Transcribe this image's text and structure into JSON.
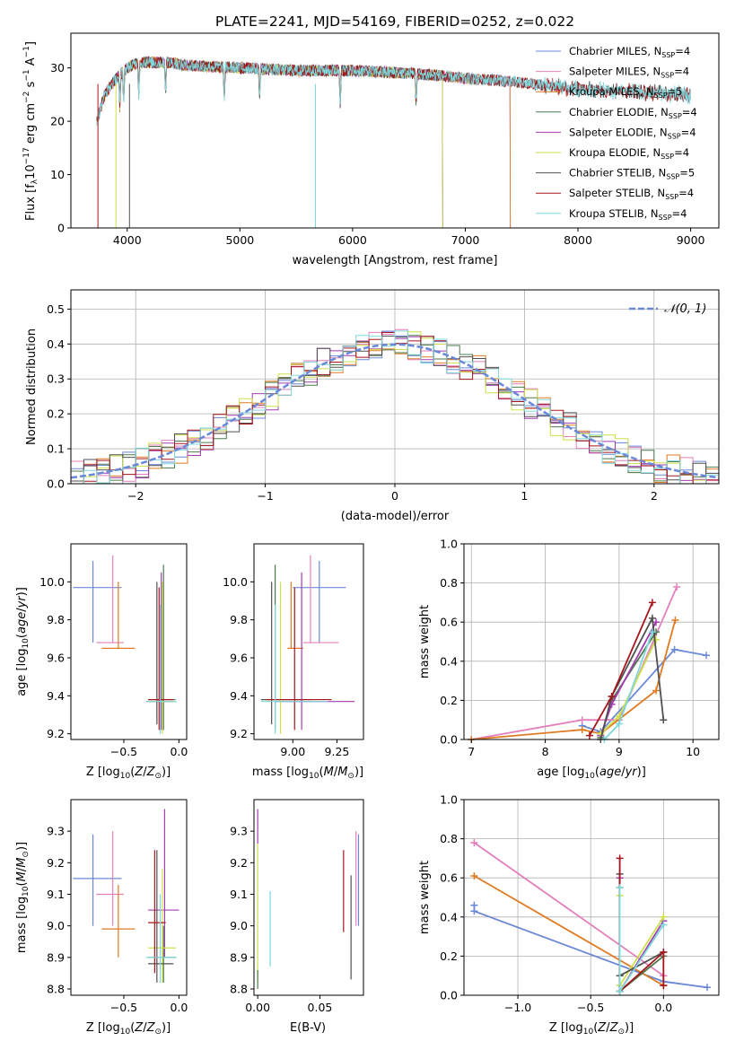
{
  "figure": {
    "title": "PLATE=2241, MJD=54169, FIBERID=0252, z=0.022"
  },
  "colors": {
    "Chabrier MILES": "#6a88d8",
    "Salpeter MILES": "#e37fbc",
    "Kroupa MILES": "#e07b22",
    "Chabrier ELODIE": "#4e7a4e",
    "Salpeter ELODIE": "#a43cb0",
    "Kroupa ELODIE": "#cde04a",
    "Chabrier STELIB": "#505050",
    "Salpeter STELIB": "#a5161c",
    "Kroupa STELIB": "#7fd8dc"
  },
  "legend": [
    {
      "name": "Chabrier MILES",
      "n": "4"
    },
    {
      "name": "Salpeter MILES",
      "n": "4"
    },
    {
      "name": "Kroupa MILES",
      "n": "5"
    },
    {
      "name": "Chabrier ELODIE",
      "n": "4"
    },
    {
      "name": "Salpeter ELODIE",
      "n": "4"
    },
    {
      "name": "Kroupa ELODIE",
      "n": "4"
    },
    {
      "name": "Chabrier STELIB",
      "n": "5"
    },
    {
      "name": "Salpeter STELIB",
      "n": "4"
    },
    {
      "name": "Kroupa STELIB",
      "n": "4"
    }
  ],
  "chart_data": [
    {
      "id": "spectrum",
      "type": "line",
      "xlabel": "wavelength [Angstrom, rest frame]",
      "ylabel": "Flux [f_λ 10^-17 erg cm^-2 s^-1 A^-1]",
      "xlim": [
        3500,
        9250
      ],
      "ylim": [
        0,
        36.5
      ],
      "xticks": [
        4000,
        5000,
        6000,
        7000,
        8000,
        9000
      ],
      "yticks": [
        0,
        10,
        20,
        30
      ],
      "grid": false,
      "legend_loc": "top-right",
      "continuum": {
        "x": [
          3730,
          3800,
          3900,
          3950,
          4000,
          4100,
          4200,
          4300,
          4400,
          4500,
          5000,
          5500,
          6000,
          6500,
          6800,
          7000,
          7400,
          7800,
          8000,
          8500,
          9000
        ],
        "y": [
          20,
          25,
          28,
          29,
          30,
          31,
          31,
          31,
          31,
          30.5,
          30,
          29.5,
          29.5,
          29,
          28.5,
          28,
          27.5,
          26.5,
          26,
          25.5,
          25
        ]
      },
      "series_coverage": {
        "Chabrier MILES": [
          3730,
          7400
        ],
        "Salpeter MILES": [
          3730,
          7400
        ],
        "Kroupa MILES": [
          3730,
          7400
        ],
        "Chabrier ELODIE": [
          3730,
          6800
        ],
        "Salpeter ELODIE": [
          3730,
          6800
        ],
        "Kroupa ELODIE": [
          3730,
          6800
        ],
        "Chabrier STELIB": [
          3730,
          9000
        ],
        "Salpeter STELIB": [
          3730,
          9000
        ],
        "Kroupa STELIB": [
          3730,
          9000
        ]
      }
    },
    {
      "id": "residuals",
      "type": "area",
      "xlabel": "(data-model)/error",
      "ylabel": "Normed distribution",
      "xlim": [
        -2.5,
        2.5
      ],
      "ylim": [
        0,
        0.555
      ],
      "xticks": [
        -2,
        -1,
        0,
        1,
        2
      ],
      "yticks": [
        0.0,
        0.1,
        0.2,
        0.3,
        0.4,
        0.5
      ],
      "grid": true,
      "legend": "N(0,1)",
      "legend_loc": "top-right",
      "bins": 50,
      "curve": "normal(0,1)"
    },
    {
      "id": "age_vs_Z",
      "type": "scatter",
      "xlabel": "Z [log10(Z/Z_sun)]",
      "ylabel": "age  [log10(age/yr)]",
      "xlim": [
        -0.98,
        0.07
      ],
      "ylim": [
        9.17,
        10.2
      ],
      "xticks": [
        -0.5,
        0.0
      ],
      "yticks": [
        9.2,
        9.4,
        9.6,
        9.8,
        10.0
      ],
      "points": [
        {
          "s": "Chabrier MILES",
          "x": -0.78,
          "y": 9.97,
          "xe": [
            -0.96,
            -0.52
          ],
          "ye": [
            9.68,
            10.11
          ]
        },
        {
          "s": "Salpeter MILES",
          "x": -0.6,
          "y": 9.68,
          "xe": [
            -0.75,
            -0.5
          ],
          "ye": [
            9.68,
            10.14
          ]
        },
        {
          "s": "Kroupa MILES",
          "x": -0.55,
          "y": 9.65,
          "xe": [
            -0.7,
            -0.4
          ],
          "ye": [
            9.65,
            10.0
          ]
        },
        {
          "s": "Chabrier ELODIE",
          "x": -0.14,
          "y": 9.38,
          "xe": [
            -0.28,
            -0.03
          ],
          "ye": [
            9.22,
            10.09
          ]
        },
        {
          "s": "Salpeter ELODIE",
          "x": -0.16,
          "y": 9.37,
          "xe": [
            -0.3,
            -0.05
          ],
          "ye": [
            9.22,
            10.05
          ]
        },
        {
          "s": "Kroupa ELODIE",
          "x": -0.15,
          "y": 9.37,
          "xe": [
            -0.28,
            -0.03
          ],
          "ye": [
            9.2,
            10.0
          ]
        },
        {
          "s": "Chabrier STELIB",
          "x": -0.2,
          "y": 9.38,
          "xe": [
            -0.28,
            -0.05
          ],
          "ye": [
            9.25,
            10.0
          ]
        },
        {
          "s": "Salpeter STELIB",
          "x": -0.18,
          "y": 9.38,
          "xe": [
            -0.28,
            -0.05
          ],
          "ye": [
            9.22,
            9.97
          ]
        },
        {
          "s": "Kroupa STELIB",
          "x": -0.17,
          "y": 9.37,
          "xe": [
            -0.3,
            -0.02
          ],
          "ye": [
            9.2,
            9.88
          ]
        }
      ]
    },
    {
      "id": "age_vs_mass",
      "type": "scatter",
      "xlabel": "mass [log10(M/M_sun)]",
      "ylabel": "",
      "xlim": [
        8.78,
        9.4
      ],
      "ylim": [
        9.17,
        10.2
      ],
      "xticks": [
        9.0,
        9.25
      ],
      "yticks": [
        9.2,
        9.4,
        9.6,
        9.8,
        10.0
      ],
      "points": [
        {
          "s": "Chabrier MILES",
          "x": 9.15,
          "y": 9.97,
          "xe": [
            9.0,
            9.3
          ],
          "ye": [
            9.68,
            10.11
          ]
        },
        {
          "s": "Salpeter MILES",
          "x": 9.1,
          "y": 9.68,
          "xe": [
            9.06,
            9.26
          ],
          "ye": [
            9.68,
            10.14
          ]
        },
        {
          "s": "Kroupa MILES",
          "x": 8.99,
          "y": 9.65,
          "xe": [
            8.97,
            9.06
          ],
          "ye": [
            9.65,
            10.0
          ]
        },
        {
          "s": "Chabrier ELODIE",
          "x": 8.9,
          "y": 9.38,
          "xe": [
            8.82,
            9.06
          ],
          "ye": [
            9.22,
            10.09
          ]
        },
        {
          "s": "Salpeter ELODIE",
          "x": 9.05,
          "y": 9.37,
          "xe": [
            8.9,
            9.35
          ],
          "ye": [
            9.22,
            10.05
          ]
        },
        {
          "s": "Kroupa ELODIE",
          "x": 8.93,
          "y": 9.38,
          "xe": [
            8.82,
            9.15
          ],
          "ye": [
            9.2,
            10.0
          ]
        },
        {
          "s": "Chabrier STELIB",
          "x": 8.88,
          "y": 9.38,
          "xe": [
            8.82,
            9.1
          ],
          "ye": [
            9.25,
            10.0
          ]
        },
        {
          "s": "Salpeter STELIB",
          "x": 9.01,
          "y": 9.38,
          "xe": [
            8.85,
            9.22
          ],
          "ye": [
            9.22,
            9.97
          ]
        },
        {
          "s": "Kroupa STELIB",
          "x": 8.9,
          "y": 9.37,
          "xe": [
            8.82,
            9.2
          ],
          "ye": [
            9.2,
            9.88
          ]
        }
      ]
    },
    {
      "id": "mass_weight_vs_age",
      "type": "line",
      "xlabel": "age  [log10(age/yr)]",
      "ylabel": "mass weight",
      "xlim": [
        6.9,
        10.35
      ],
      "ylim": [
        0,
        1.0
      ],
      "xticks": [
        7,
        8,
        9,
        10
      ],
      "yticks": [
        0.0,
        0.2,
        0.4,
        0.6,
        0.8,
        1.0
      ],
      "grid": true,
      "series": [
        {
          "name": "Chabrier MILES",
          "x": [
            8.5,
            8.75,
            9.75,
            10.18
          ],
          "y": [
            0.07,
            0.04,
            0.46,
            0.43
          ]
        },
        {
          "name": "Salpeter MILES",
          "x": [
            7.0,
            8.5,
            9.0,
            9.78
          ],
          "y": [
            0.0,
            0.1,
            0.1,
            0.78
          ]
        },
        {
          "name": "Kroupa MILES",
          "x": [
            7.0,
            8.5,
            8.75,
            9.5,
            9.76
          ],
          "y": [
            0.0,
            0.05,
            0.03,
            0.25,
            0.61
          ]
        },
        {
          "name": "Chabrier ELODIE",
          "x": [
            8.75,
            8.9,
            9.5
          ],
          "y": [
            0.01,
            0.2,
            0.55
          ]
        },
        {
          "name": "Salpeter ELODIE",
          "x": [
            8.75,
            8.9,
            9.5
          ],
          "y": [
            0.02,
            0.18,
            0.6
          ]
        },
        {
          "name": "Kroupa ELODIE",
          "x": [
            8.75,
            9.0,
            9.5
          ],
          "y": [
            0.03,
            0.12,
            0.51
          ]
        },
        {
          "name": "Chabrier STELIB",
          "x": [
            8.75,
            8.9,
            9.45,
            9.6
          ],
          "y": [
            0.0,
            0.22,
            0.62,
            0.1
          ]
        },
        {
          "name": "Salpeter STELIB",
          "x": [
            8.6,
            8.9,
            9.45
          ],
          "y": [
            0.02,
            0.22,
            0.7
          ]
        },
        {
          "name": "Kroupa STELIB",
          "x": [
            8.8,
            9.0,
            9.45
          ],
          "y": [
            0.0,
            0.08,
            0.55
          ]
        }
      ]
    },
    {
      "id": "mass_vs_Z",
      "type": "scatter",
      "xlabel": "Z [log10(Z/Z_sun)]",
      "ylabel": "mass [log10(M/M_sun)]",
      "xlim": [
        -0.98,
        0.07
      ],
      "ylim": [
        8.78,
        9.4
      ],
      "xticks": [
        -0.5,
        0.0
      ],
      "yticks": [
        8.8,
        8.9,
        9.0,
        9.1,
        9.2,
        9.3
      ],
      "points": [
        {
          "s": "Chabrier MILES",
          "x": -0.78,
          "y": 9.15,
          "xe": [
            -0.96,
            -0.52
          ],
          "ye": [
            9.0,
            9.29
          ]
        },
        {
          "s": "Salpeter MILES",
          "x": -0.6,
          "y": 9.1,
          "xe": [
            -0.75,
            -0.5
          ],
          "ye": [
            9.0,
            9.3
          ]
        },
        {
          "s": "Kroupa MILES",
          "x": -0.55,
          "y": 8.99,
          "xe": [
            -0.7,
            -0.4
          ],
          "ye": [
            8.9,
            9.13
          ]
        },
        {
          "s": "Chabrier ELODIE",
          "x": -0.14,
          "y": 8.9,
          "xe": [
            -0.28,
            -0.03
          ],
          "ye": [
            8.82,
            9.0
          ]
        },
        {
          "s": "Salpeter ELODIE",
          "x": -0.13,
          "y": 9.05,
          "xe": [
            -0.28,
            0.0
          ],
          "ye": [
            8.9,
            9.37
          ]
        },
        {
          "s": "Kroupa ELODIE",
          "x": -0.15,
          "y": 8.93,
          "xe": [
            -0.28,
            -0.03
          ],
          "ye": [
            8.82,
            9.18
          ]
        },
        {
          "s": "Chabrier STELIB",
          "x": -0.2,
          "y": 8.88,
          "xe": [
            -0.28,
            -0.05
          ],
          "ye": [
            8.82,
            9.24
          ]
        },
        {
          "s": "Salpeter STELIB",
          "x": -0.22,
          "y": 9.01,
          "xe": [
            -0.28,
            -0.12
          ],
          "ye": [
            8.85,
            9.24
          ]
        },
        {
          "s": "Kroupa STELIB",
          "x": -0.17,
          "y": 8.9,
          "xe": [
            -0.3,
            -0.02
          ],
          "ye": [
            8.82,
            9.1
          ]
        }
      ]
    },
    {
      "id": "mass_vs_ebv",
      "type": "scatter",
      "xlabel": "E(B-V)",
      "ylabel": "",
      "xlim": [
        -0.003,
        0.085
      ],
      "ylim": [
        8.78,
        9.4
      ],
      "xticks": [
        0.0,
        0.05
      ],
      "yticks": [
        8.8,
        8.9,
        9.0,
        9.1,
        9.2,
        9.3
      ],
      "points": [
        {
          "s": "Chabrier MILES",
          "x": 0.081,
          "y": 9.15,
          "xe": [
            0.081,
            0.081
          ],
          "ye": [
            9.0,
            9.29
          ]
        },
        {
          "s": "Salpeter MILES",
          "x": 0.079,
          "y": 9.1,
          "xe": [
            0.079,
            0.079
          ],
          "ye": [
            9.0,
            9.3
          ]
        },
        {
          "s": "Salpeter ELODIE",
          "x": 0.0,
          "y": 9.05,
          "xe": [
            0.0,
            0.0
          ],
          "ye": [
            9.26,
            9.37
          ]
        },
        {
          "s": "Kroupa ELODIE",
          "x": 0.0,
          "y": 8.93,
          "xe": [
            0.0,
            0.0
          ],
          "ye": [
            8.82,
            9.26
          ]
        },
        {
          "s": "Chabrier ELODIE",
          "x": 0.0,
          "y": 8.9,
          "xe": [
            0.0,
            0.0
          ],
          "ye": [
            8.8,
            8.86
          ]
        },
        {
          "s": "Kroupa STELIB",
          "x": 0.01,
          "y": 8.9,
          "xe": [
            0.01,
            0.01
          ],
          "ye": [
            8.87,
            9.11
          ]
        },
        {
          "s": "Salpeter STELIB",
          "x": 0.069,
          "y": 9.01,
          "xe": [
            0.069,
            0.069
          ],
          "ye": [
            8.98,
            9.24
          ]
        },
        {
          "s": "Chabrier STELIB",
          "x": 0.075,
          "y": 8.88,
          "xe": [
            0.075,
            0.075
          ],
          "ye": [
            8.83,
            9.16
          ]
        }
      ]
    },
    {
      "id": "mass_weight_vs_Z",
      "type": "line",
      "xlabel": "Z [log10(Z/Z_sun)]",
      "ylabel": "mass weight",
      "xlim": [
        -1.37,
        0.38
      ],
      "ylim": [
        0,
        1.0
      ],
      "xticks": [
        -1.0,
        -0.5,
        0.0
      ],
      "yticks": [
        0.0,
        0.2,
        0.4,
        0.6,
        0.8,
        1.0
      ],
      "grid": true,
      "series": [
        {
          "name": "Chabrier MILES",
          "x": [
            -1.3,
            -1.3,
            0.0,
            0.3
          ],
          "y": [
            0.46,
            0.43,
            0.07,
            0.04
          ]
        },
        {
          "name": "Salpeter MILES",
          "x": [
            -1.3,
            0.0,
            0.0
          ],
          "y": [
            0.78,
            0.1,
            0.1
          ]
        },
        {
          "name": "Kroupa MILES",
          "x": [
            -1.3,
            0.0,
            0.0
          ],
          "y": [
            0.61,
            0.05,
            0.05
          ]
        },
        {
          "name": "Chabrier ELODIE",
          "x": [
            -0.3,
            -0.3,
            0.0
          ],
          "y": [
            0.55,
            0.02,
            0.2
          ]
        },
        {
          "name": "Salpeter ELODIE",
          "x": [
            -0.3,
            -0.3,
            0.0
          ],
          "y": [
            0.6,
            0.02,
            0.38
          ]
        },
        {
          "name": "Kroupa ELODIE",
          "x": [
            -0.3,
            -0.3,
            0.0
          ],
          "y": [
            0.51,
            0.05,
            0.4
          ]
        },
        {
          "name": "Chabrier STELIB",
          "x": [
            -0.3,
            -0.3,
            0.0
          ],
          "y": [
            0.62,
            0.1,
            0.22
          ]
        },
        {
          "name": "Salpeter STELIB",
          "x": [
            -0.3,
            -0.3,
            0.0,
            0.0
          ],
          "y": [
            0.7,
            0.02,
            0.22,
            0.05
          ]
        },
        {
          "name": "Kroupa STELIB",
          "x": [
            -0.3,
            -0.3,
            0.0
          ],
          "y": [
            0.55,
            0.02,
            0.36
          ]
        }
      ]
    }
  ]
}
